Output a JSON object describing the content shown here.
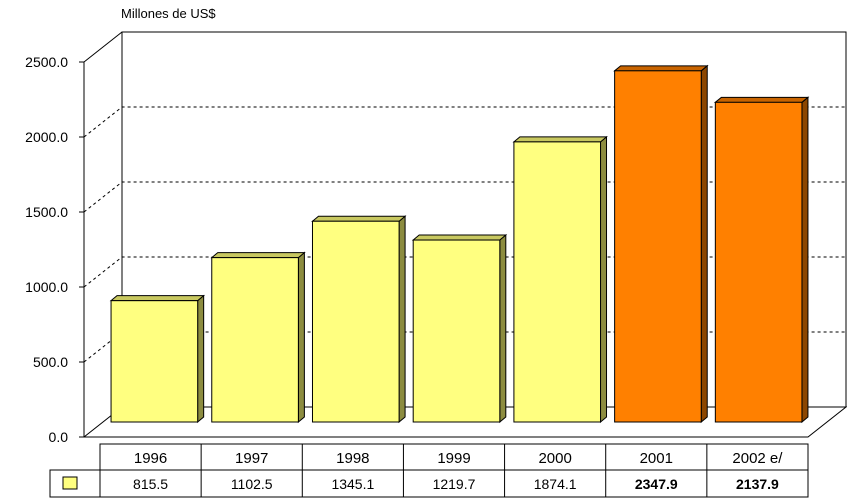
{
  "chart_data": {
    "type": "bar",
    "ylabel": "Millones de US$",
    "categories": [
      "1996",
      "1997",
      "1998",
      "1999",
      "2000",
      "2001",
      "2002 e/"
    ],
    "values": [
      815.5,
      1102.5,
      1345.1,
      1219.7,
      1874.1,
      2347.9,
      2137.9
    ],
    "value_labels": [
      "815.5",
      "1102.5",
      "1345.1",
      "1219.7",
      "1874.1",
      "2347.9",
      "2137.9"
    ],
    "bold_values": [
      false,
      false,
      false,
      false,
      false,
      true,
      true
    ],
    "ylim": [
      0,
      2500
    ],
    "yticks": [
      0,
      500,
      1000,
      1500,
      2000,
      2500
    ],
    "ytick_labels": [
      "0.0",
      "500.0",
      "1000.0",
      "1500.0",
      "2000.0",
      "2500.0"
    ],
    "grid": true,
    "data_table": true,
    "colors": {
      "base_face": "#ffff80",
      "base_top": "#c8c860",
      "base_side": "#8c8c40",
      "highlight_face": "#ff8000",
      "highlight_top": "#c86400",
      "highlight_side": "#8c4600",
      "legend_key": "#ffff80"
    },
    "highlight": [
      false,
      false,
      false,
      false,
      false,
      true,
      true
    ]
  }
}
